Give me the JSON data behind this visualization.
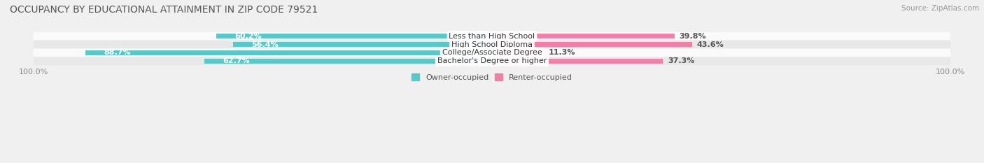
{
  "title": "OCCUPANCY BY EDUCATIONAL ATTAINMENT IN ZIP CODE 79521",
  "source": "Source: ZipAtlas.com",
  "categories": [
    "Less than High School",
    "High School Diploma",
    "College/Associate Degree",
    "Bachelor's Degree or higher"
  ],
  "owner_values": [
    60.2,
    56.4,
    88.7,
    62.7
  ],
  "renter_values": [
    39.8,
    43.6,
    11.3,
    37.3
  ],
  "owner_color": "#5bc8c8",
  "renter_color": "#f080a8",
  "owner_label": "Owner-occupied",
  "renter_label": "Renter-occupied",
  "bar_height": 0.58,
  "bg_color": "#f0f0f0",
  "row_bg_light": "#fafafa",
  "row_bg_dark": "#e8e8e8",
  "title_fontsize": 10,
  "label_fontsize": 8,
  "value_fontsize": 8,
  "source_fontsize": 7.5,
  "legend_fontsize": 8,
  "axis_label": "100.0%",
  "figsize": [
    14.06,
    2.33
  ],
  "dpi": 100
}
